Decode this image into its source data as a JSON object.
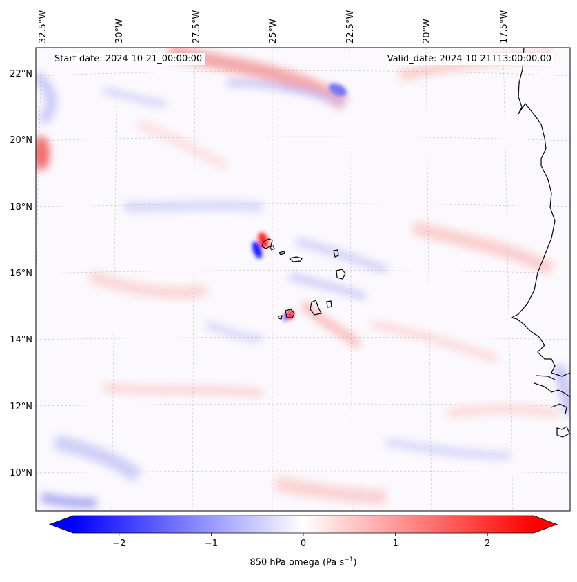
{
  "header": {
    "start_date": "Start date: 2024-10-21_00:00:00",
    "valid_date": "Valid_date: 2024-10-21T13:00:00.00"
  },
  "map": {
    "lon_labels": [
      "32.5°W",
      "30°W",
      "27.5°W",
      "25°W",
      "22.5°W",
      "20°W",
      "17.5°W"
    ],
    "lat_labels": [
      "22°N",
      "20°N",
      "18°N",
      "16°N",
      "14°N",
      "12°N",
      "10°N"
    ],
    "features": [
      "Cape Verde Islands",
      "West African coastline"
    ],
    "field": "850 hPa omega",
    "gridlines": true
  },
  "colorbar": {
    "label_prefix": "850 hPa omega (Pa s",
    "label_exponent": "−1",
    "label_suffix": ")",
    "tick_labels": [
      "−2",
      "−1",
      "0",
      "1",
      "2"
    ],
    "ticks": [
      -2,
      -1,
      0,
      1,
      2
    ],
    "range": [
      -2.5,
      2.5
    ],
    "colormap": "bwr",
    "low_color": "#0000ff",
    "mid_color": "#ffffff",
    "high_color": "#ff0000",
    "extend": "both"
  }
}
